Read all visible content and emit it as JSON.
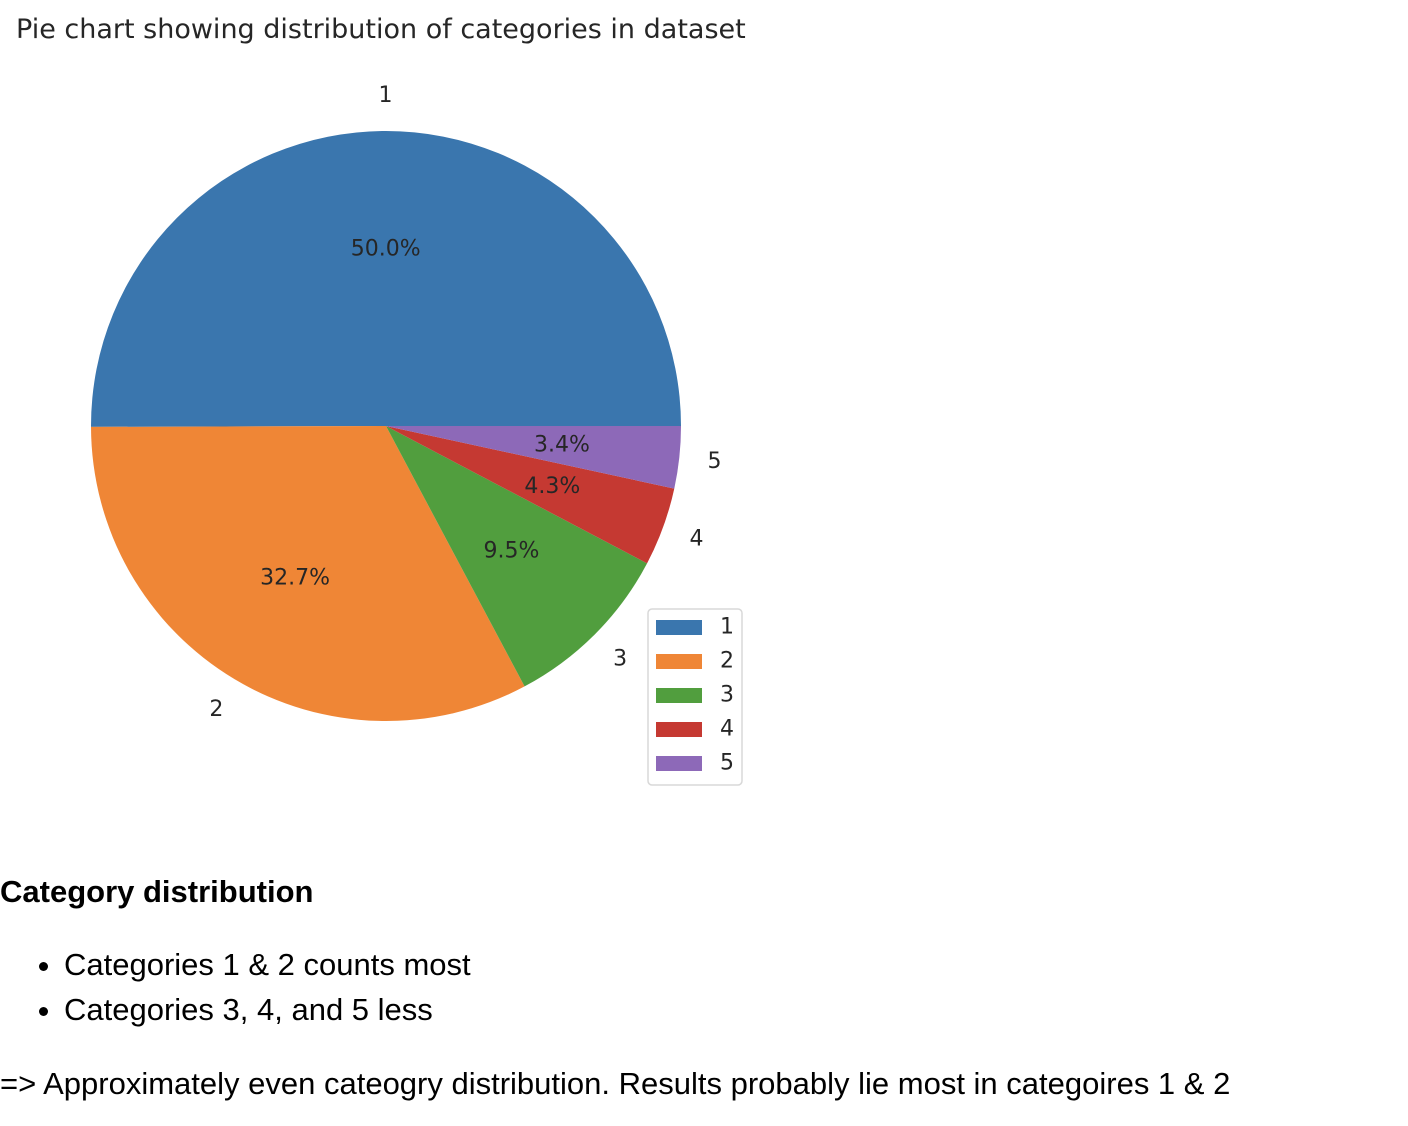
{
  "chart_data": {
    "type": "pie",
    "title": "Pie chart showing distribution of categories in dataset",
    "categories": [
      "1",
      "2",
      "3",
      "4",
      "5"
    ],
    "values": [
      50.0,
      32.7,
      9.5,
      4.3,
      3.4
    ],
    "value_labels": [
      "50.0%",
      "32.7%",
      "9.5%",
      "4.3%",
      "3.4%"
    ],
    "colors": [
      "#3a76ae",
      "#ef8636",
      "#519e3e",
      "#c53932",
      "#8d69b8"
    ],
    "legend": {
      "placement": "bottom-right",
      "entries": [
        "1",
        "2",
        "3",
        "4",
        "5"
      ]
    }
  },
  "notes": {
    "heading": "Category distribution",
    "bullets": [
      "Categories 1 & 2 counts most",
      "Categories 3, 4, and 5 less"
    ],
    "conclusion": "=> Approximately even cateogry distribution. Results probably lie most in categoires 1 & 2"
  }
}
